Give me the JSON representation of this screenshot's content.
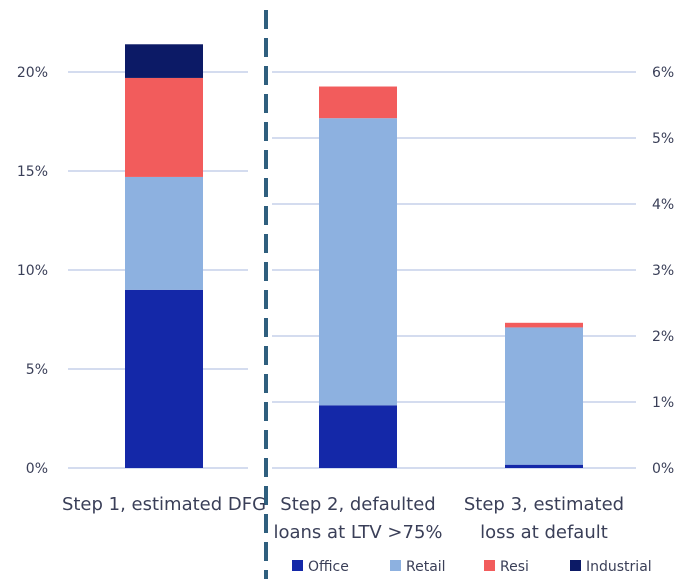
{
  "chart_data": {
    "type": "bar",
    "stacked": true,
    "categories": [
      [
        "Step 1, estimated DFG"
      ],
      [
        "Step 2, defaulted",
        "loans at LTV >75%"
      ],
      [
        "Step 3, estimated",
        "loss at default"
      ]
    ],
    "category_axis": [
      "left",
      "right",
      "right"
    ],
    "series": [
      {
        "name": "Office",
        "color": "#1428a8",
        "values": [
          9.0,
          0.95,
          0.05
        ]
      },
      {
        "name": "Retail",
        "color": "#8db1e0",
        "values": [
          5.7,
          4.35,
          2.08
        ]
      },
      {
        "name": "Resi",
        "color": "#f25c5c",
        "values": [
          5.0,
          0.48,
          0.07
        ]
      },
      {
        "name": "Industrial",
        "color": "#0c1a66",
        "values": [
          1.7,
          0.0,
          0.0
        ]
      }
    ],
    "y_left": {
      "ylim": [
        0,
        20
      ],
      "ticks": [
        "0%",
        "5%",
        "10%",
        "15%",
        "20%"
      ],
      "tick_values": [
        0,
        5,
        10,
        15,
        20
      ]
    },
    "y_right": {
      "ylim": [
        0,
        6
      ],
      "ticks": [
        "0%",
        "1%",
        "2%",
        "3%",
        "4%",
        "5%",
        "6%"
      ],
      "tick_values": [
        0,
        1,
        2,
        3,
        4,
        5,
        6
      ]
    },
    "divider": "dashed",
    "legend_position": "bottom",
    "grid": true
  }
}
